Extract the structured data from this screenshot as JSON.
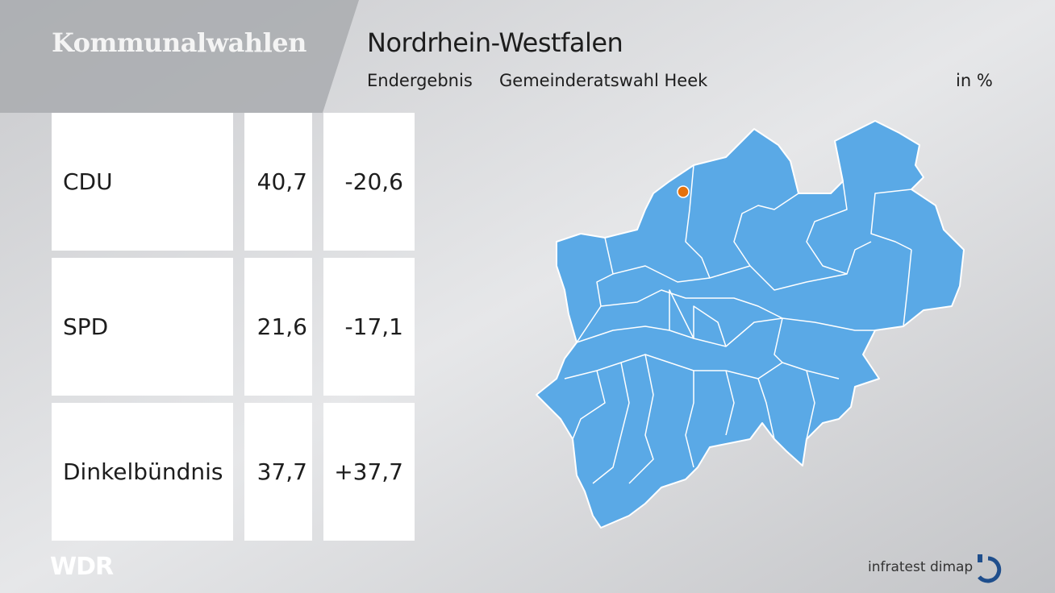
{
  "header": {
    "title": "Kommunalwahlen"
  },
  "title": "Nordrhein-Westfalen",
  "subtitle": {
    "status": "Endergebnis",
    "election": "Gemeinderatswahl Heek",
    "unit": "in %"
  },
  "table": {
    "rows": [
      [
        "CDU",
        "40,7",
        "-20,6"
      ],
      [
        "SPD",
        "21,6",
        "-17,1"
      ],
      [
        "Dinkelbündnis",
        "37,7",
        "+37,7"
      ]
    ]
  },
  "footer": {
    "broadcaster": "WDR",
    "pollster": "infratest dimap"
  }
}
